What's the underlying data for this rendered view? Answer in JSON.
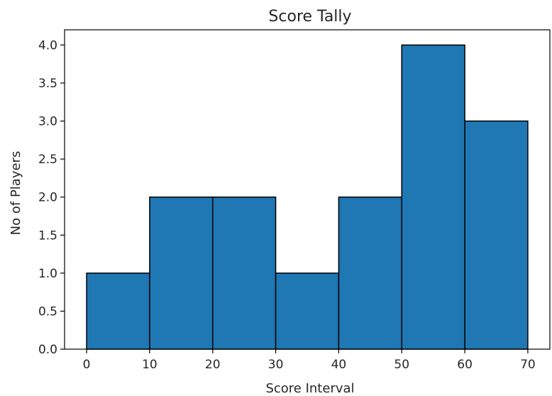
{
  "chart_data": {
    "type": "bar",
    "title": "Score Tally",
    "xlabel": "Score Interval",
    "ylabel": "No of Players",
    "bins": [
      {
        "start": 0,
        "end": 10,
        "value": 1
      },
      {
        "start": 10,
        "end": 20,
        "value": 2
      },
      {
        "start": 20,
        "end": 30,
        "value": 2
      },
      {
        "start": 30,
        "end": 40,
        "value": 1
      },
      {
        "start": 40,
        "end": 50,
        "value": 2
      },
      {
        "start": 50,
        "end": 60,
        "value": 4
      },
      {
        "start": 60,
        "end": 70,
        "value": 3
      }
    ],
    "xlim": [
      -3.5,
      73.5
    ],
    "ylim": [
      0,
      4.2
    ],
    "xticks": [
      0,
      10,
      20,
      30,
      40,
      50,
      60,
      70
    ],
    "xtick_labels": [
      "0",
      "10",
      "20",
      "30",
      "40",
      "50",
      "60",
      "70"
    ],
    "yticks": [
      0,
      0.5,
      1,
      1.5,
      2,
      2.5,
      3,
      3.5,
      4
    ],
    "ytick_labels": [
      "0.0",
      "0.5",
      "1.0",
      "1.5",
      "2.0",
      "2.5",
      "3.0",
      "3.5",
      "4.0"
    ],
    "grid": false,
    "bar_color": "#1f77b4",
    "edge_color": "#000000"
  }
}
